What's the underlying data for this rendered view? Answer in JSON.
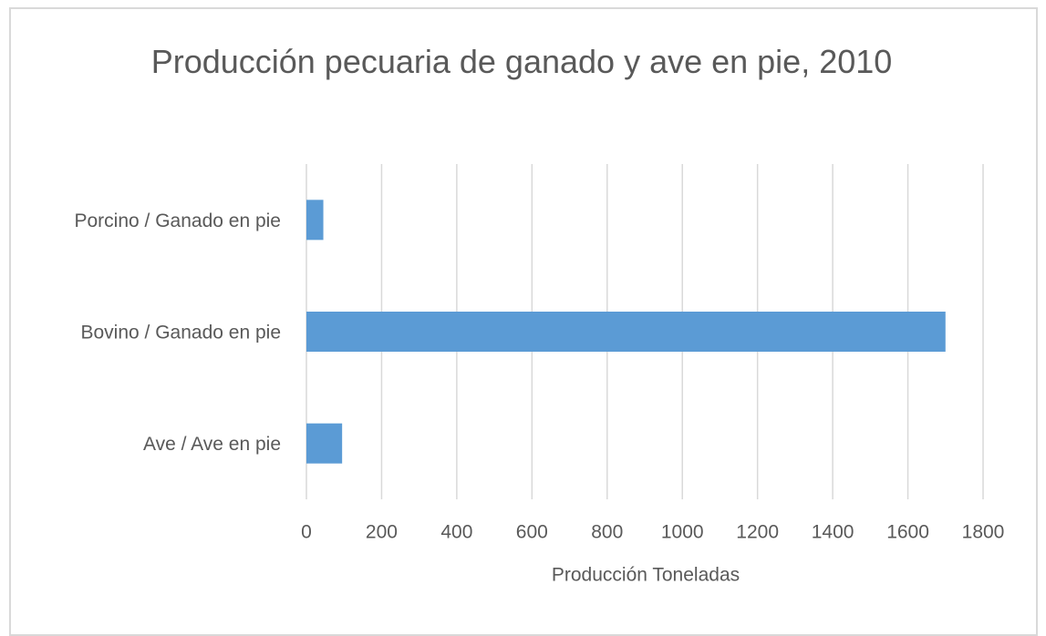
{
  "chart_data": {
    "type": "bar",
    "orientation": "horizontal",
    "title": "Producción pecuaria de ganado y ave en pie, 2010",
    "x_label": "Producción Toneladas",
    "categories": [
      "Porcino / Ganado en pie",
      "Bovino / Ganado en pie",
      "Ave / Ave en pie"
    ],
    "values": [
      45,
      1700,
      95
    ],
    "color": "#5b9bd5",
    "xlim": [
      0,
      1800
    ],
    "xticks": [
      0,
      200,
      400,
      600,
      800,
      1000,
      1200,
      1400,
      1600,
      1800
    ],
    "grid": true
  }
}
